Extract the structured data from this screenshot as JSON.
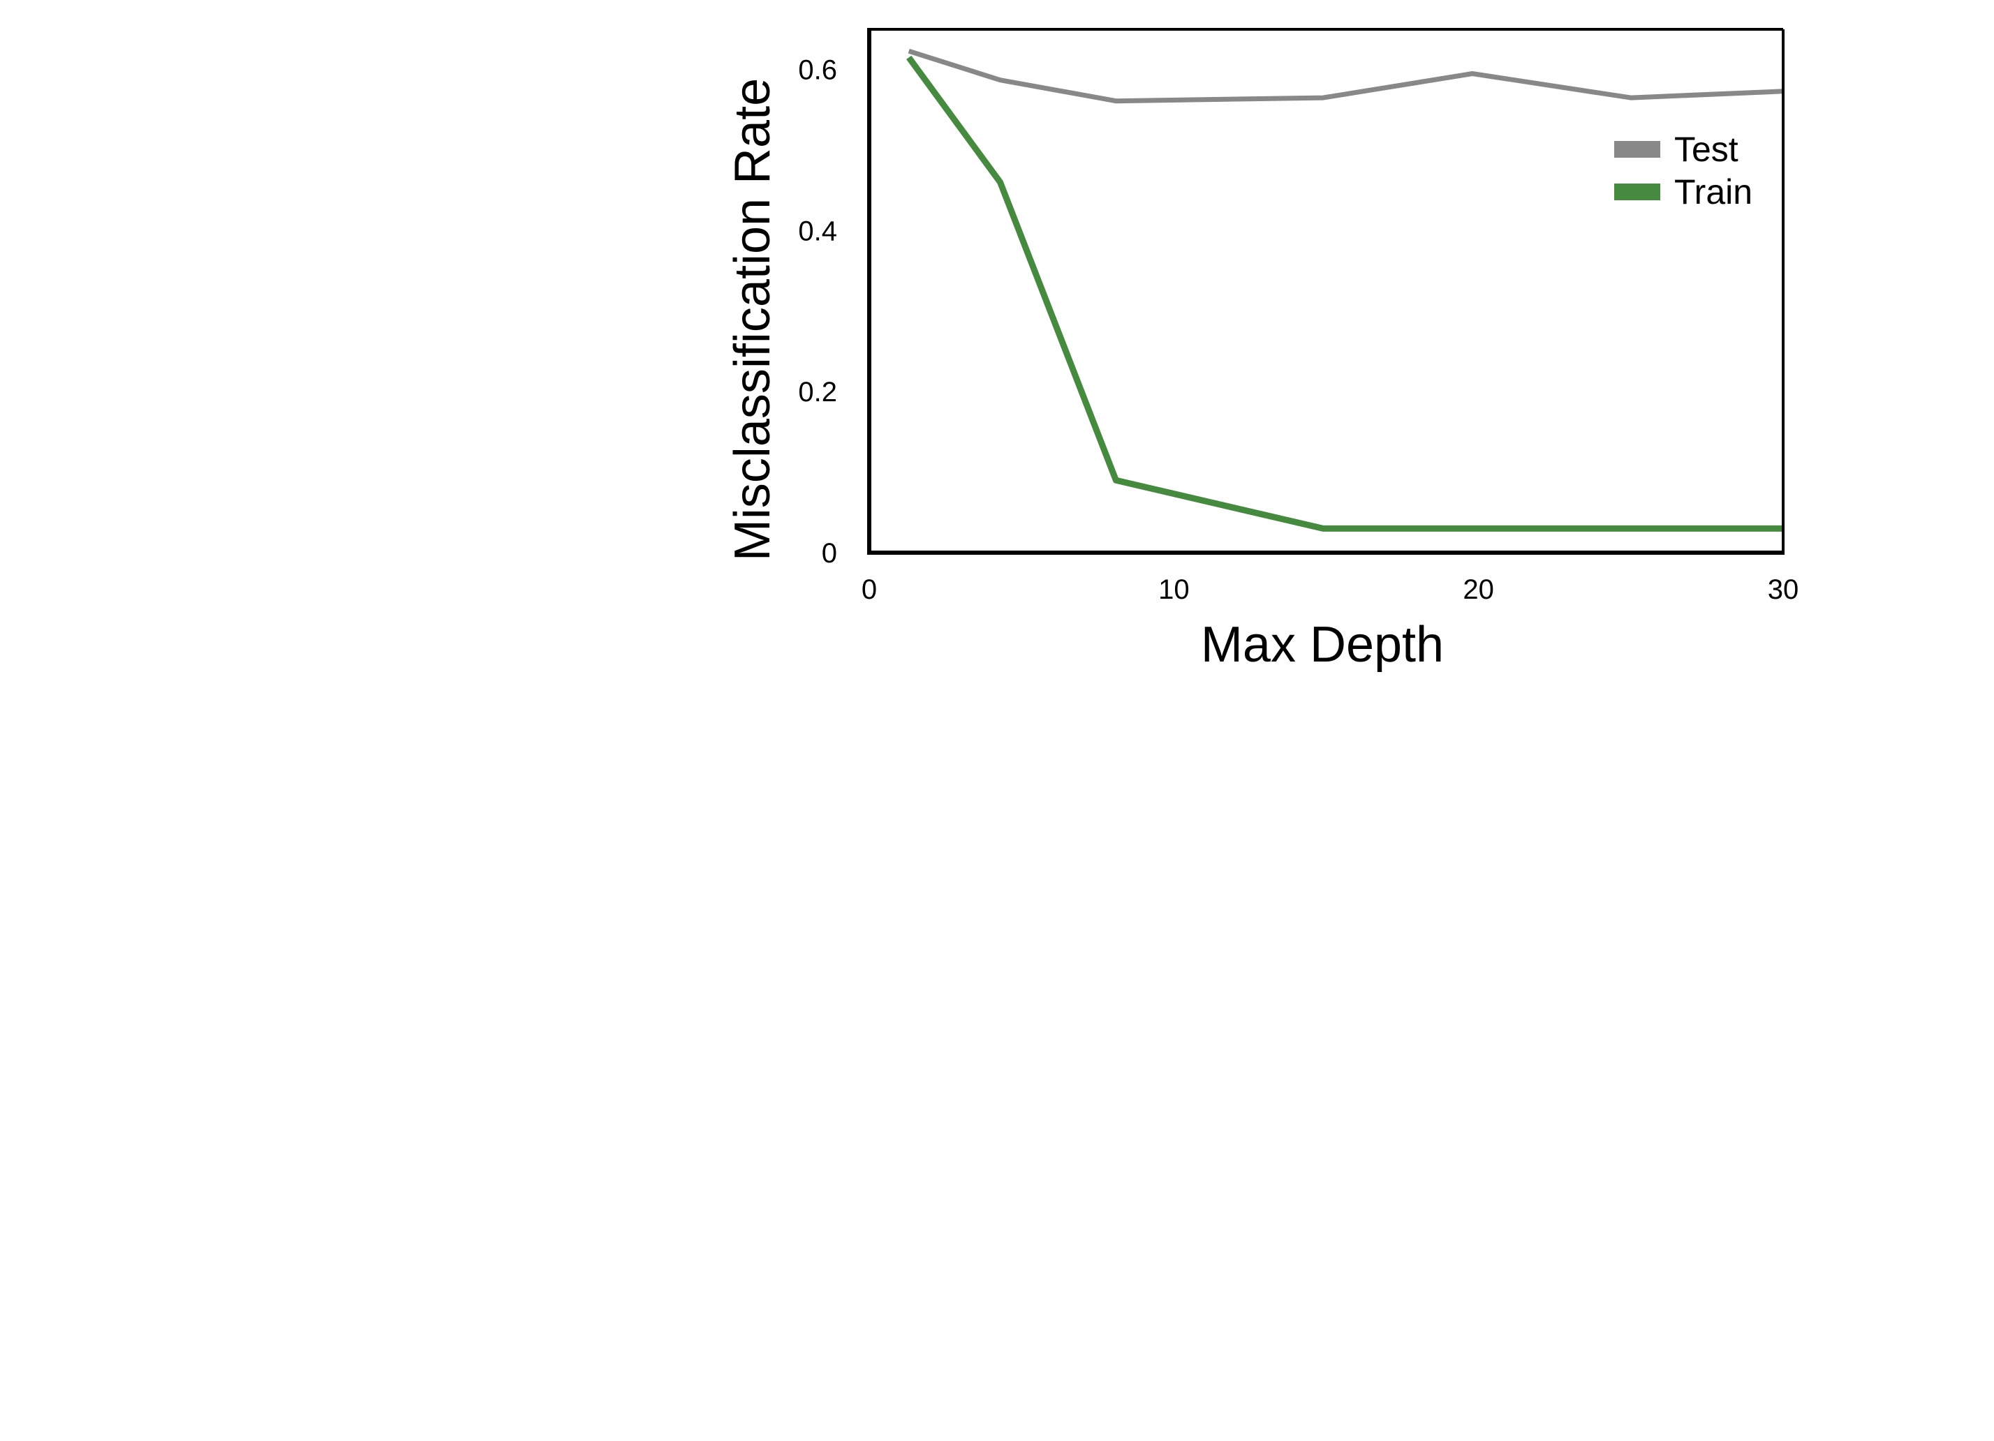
{
  "chart_data": {
    "type": "line",
    "xlabel": "Max Depth",
    "ylabel": "Misclassification Rate",
    "xlim": [
      0,
      30
    ],
    "ylim": [
      0,
      0.65
    ],
    "xticks": [
      0,
      10,
      20,
      30
    ],
    "xtick_labels": [
      "0",
      "10",
      "20",
      "30"
    ],
    "yticks": [
      0,
      0.2,
      0.4,
      0.6
    ],
    "ytick_labels": [
      "0",
      "0.2",
      "0.4",
      "0.6"
    ],
    "grid": false,
    "legend_position": "top-right",
    "series": [
      {
        "name": "Test",
        "color": "#888888",
        "x": [
          1.3,
          4.3,
          8.1,
          14.9,
          19.8,
          25.0,
          30.0
        ],
        "y": [
          0.623,
          0.587,
          0.561,
          0.565,
          0.595,
          0.565,
          0.573
        ]
      },
      {
        "name": "Train",
        "color": "#458a3f",
        "x": [
          1.3,
          4.3,
          8.1,
          14.9,
          19.8,
          25.0,
          30.0
        ],
        "y": [
          0.615,
          0.46,
          0.09,
          0.03,
          0.03,
          0.03,
          0.03
        ]
      }
    ]
  }
}
